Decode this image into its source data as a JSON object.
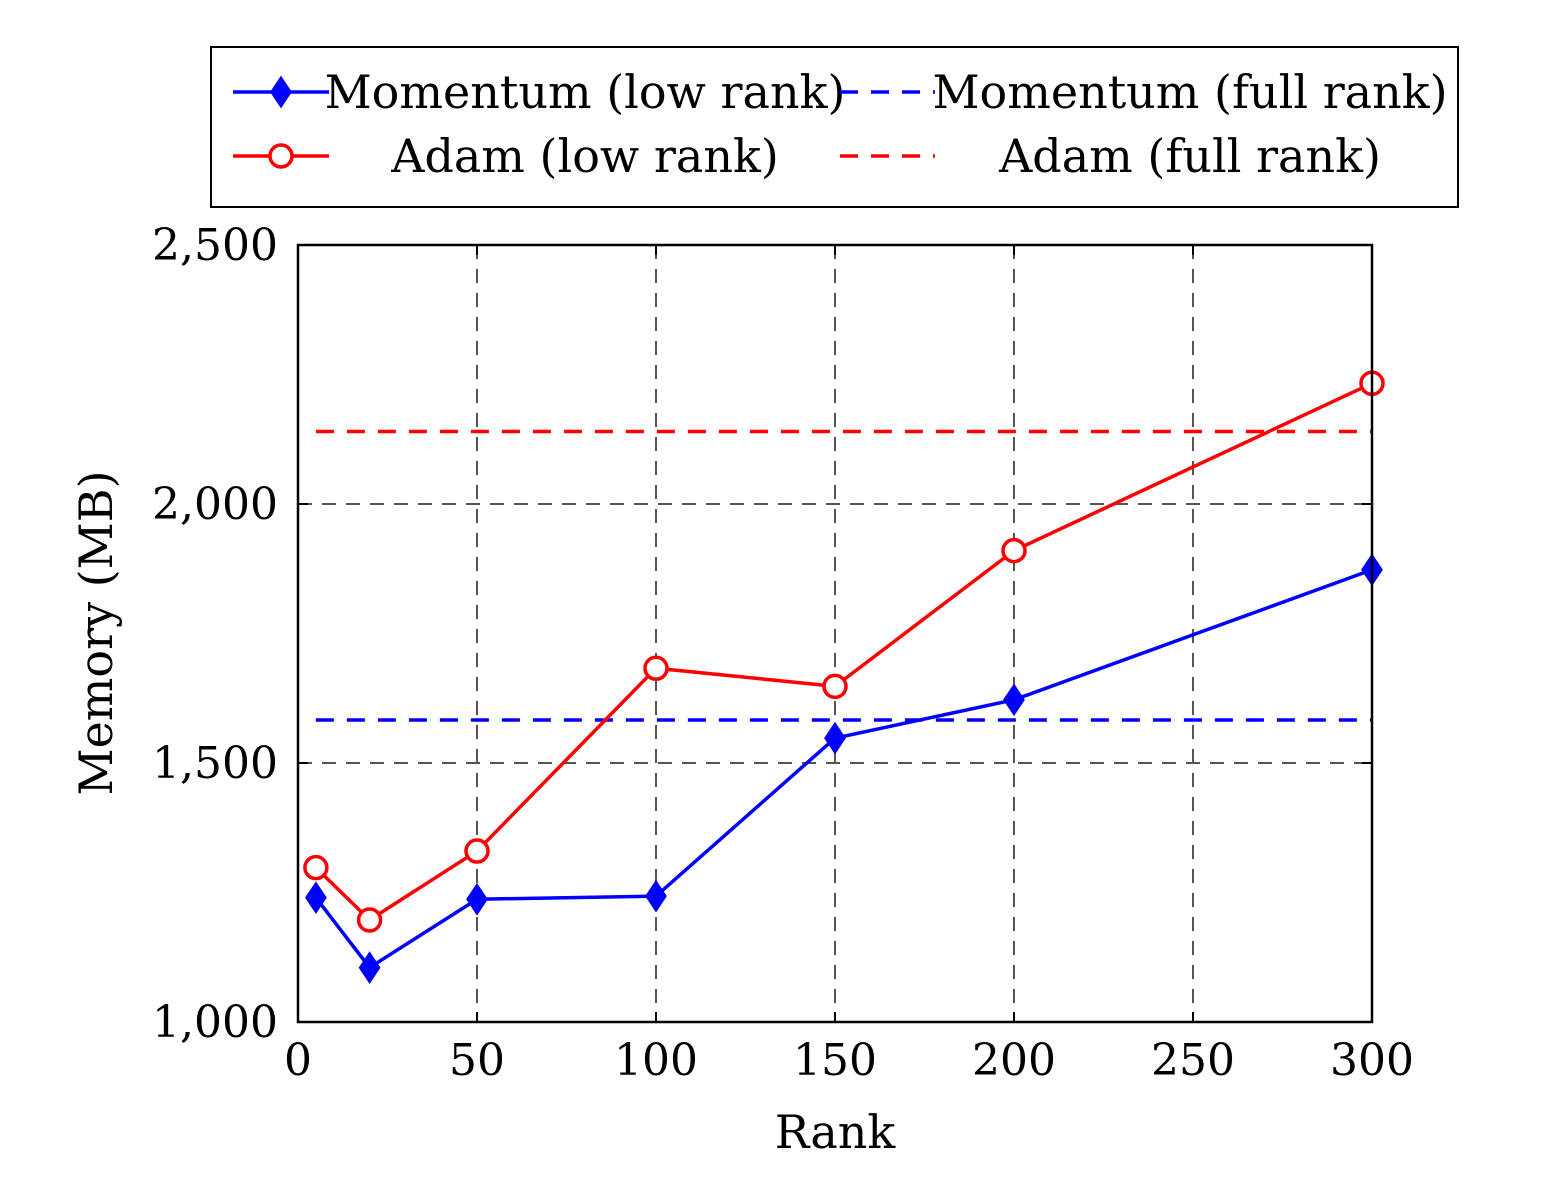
{
  "chart_data": {
    "type": "line",
    "title": "",
    "xlabel": "Rank",
    "ylabel": "Memory (MB)",
    "xlim": [
      0,
      300
    ],
    "ylim": [
      1000,
      2500
    ],
    "x_ticks": [
      0,
      50,
      100,
      150,
      200,
      250,
      300
    ],
    "x_tick_labels": [
      "0",
      "50",
      "100",
      "150",
      "200",
      "250",
      "300"
    ],
    "y_ticks": [
      1000,
      1500,
      2000,
      2500
    ],
    "y_tick_labels": [
      "1,000",
      "1,500",
      "2,000",
      "2,500"
    ],
    "grid": true,
    "legend_position": "top",
    "series": [
      {
        "name": "Momentum (low rank)",
        "color": "#0000ff",
        "line_style": "solid",
        "marker": "diamond",
        "x": [
          5,
          20,
          50,
          100,
          150,
          200,
          300
        ],
        "values": [
          1240,
          1105,
          1237,
          1243,
          1548,
          1622,
          1873
        ]
      },
      {
        "name": "Momentum (full rank)",
        "color": "#0000ff",
        "line_style": "dashed",
        "marker": "none",
        "x": [
          5,
          300
        ],
        "values": [
          1583,
          1583
        ]
      },
      {
        "name": "Adam (low rank)",
        "color": "#ff0000",
        "line_style": "solid",
        "marker": "open-circle",
        "x": [
          5,
          20,
          50,
          100,
          150,
          200,
          300
        ],
        "values": [
          1298,
          1197,
          1330,
          1683,
          1648,
          1910,
          2233
        ]
      },
      {
        "name": "Adam (full rank)",
        "color": "#ff0000",
        "line_style": "dashed",
        "marker": "none",
        "x": [
          5,
          300
        ],
        "values": [
          2140,
          2140
        ]
      }
    ]
  }
}
